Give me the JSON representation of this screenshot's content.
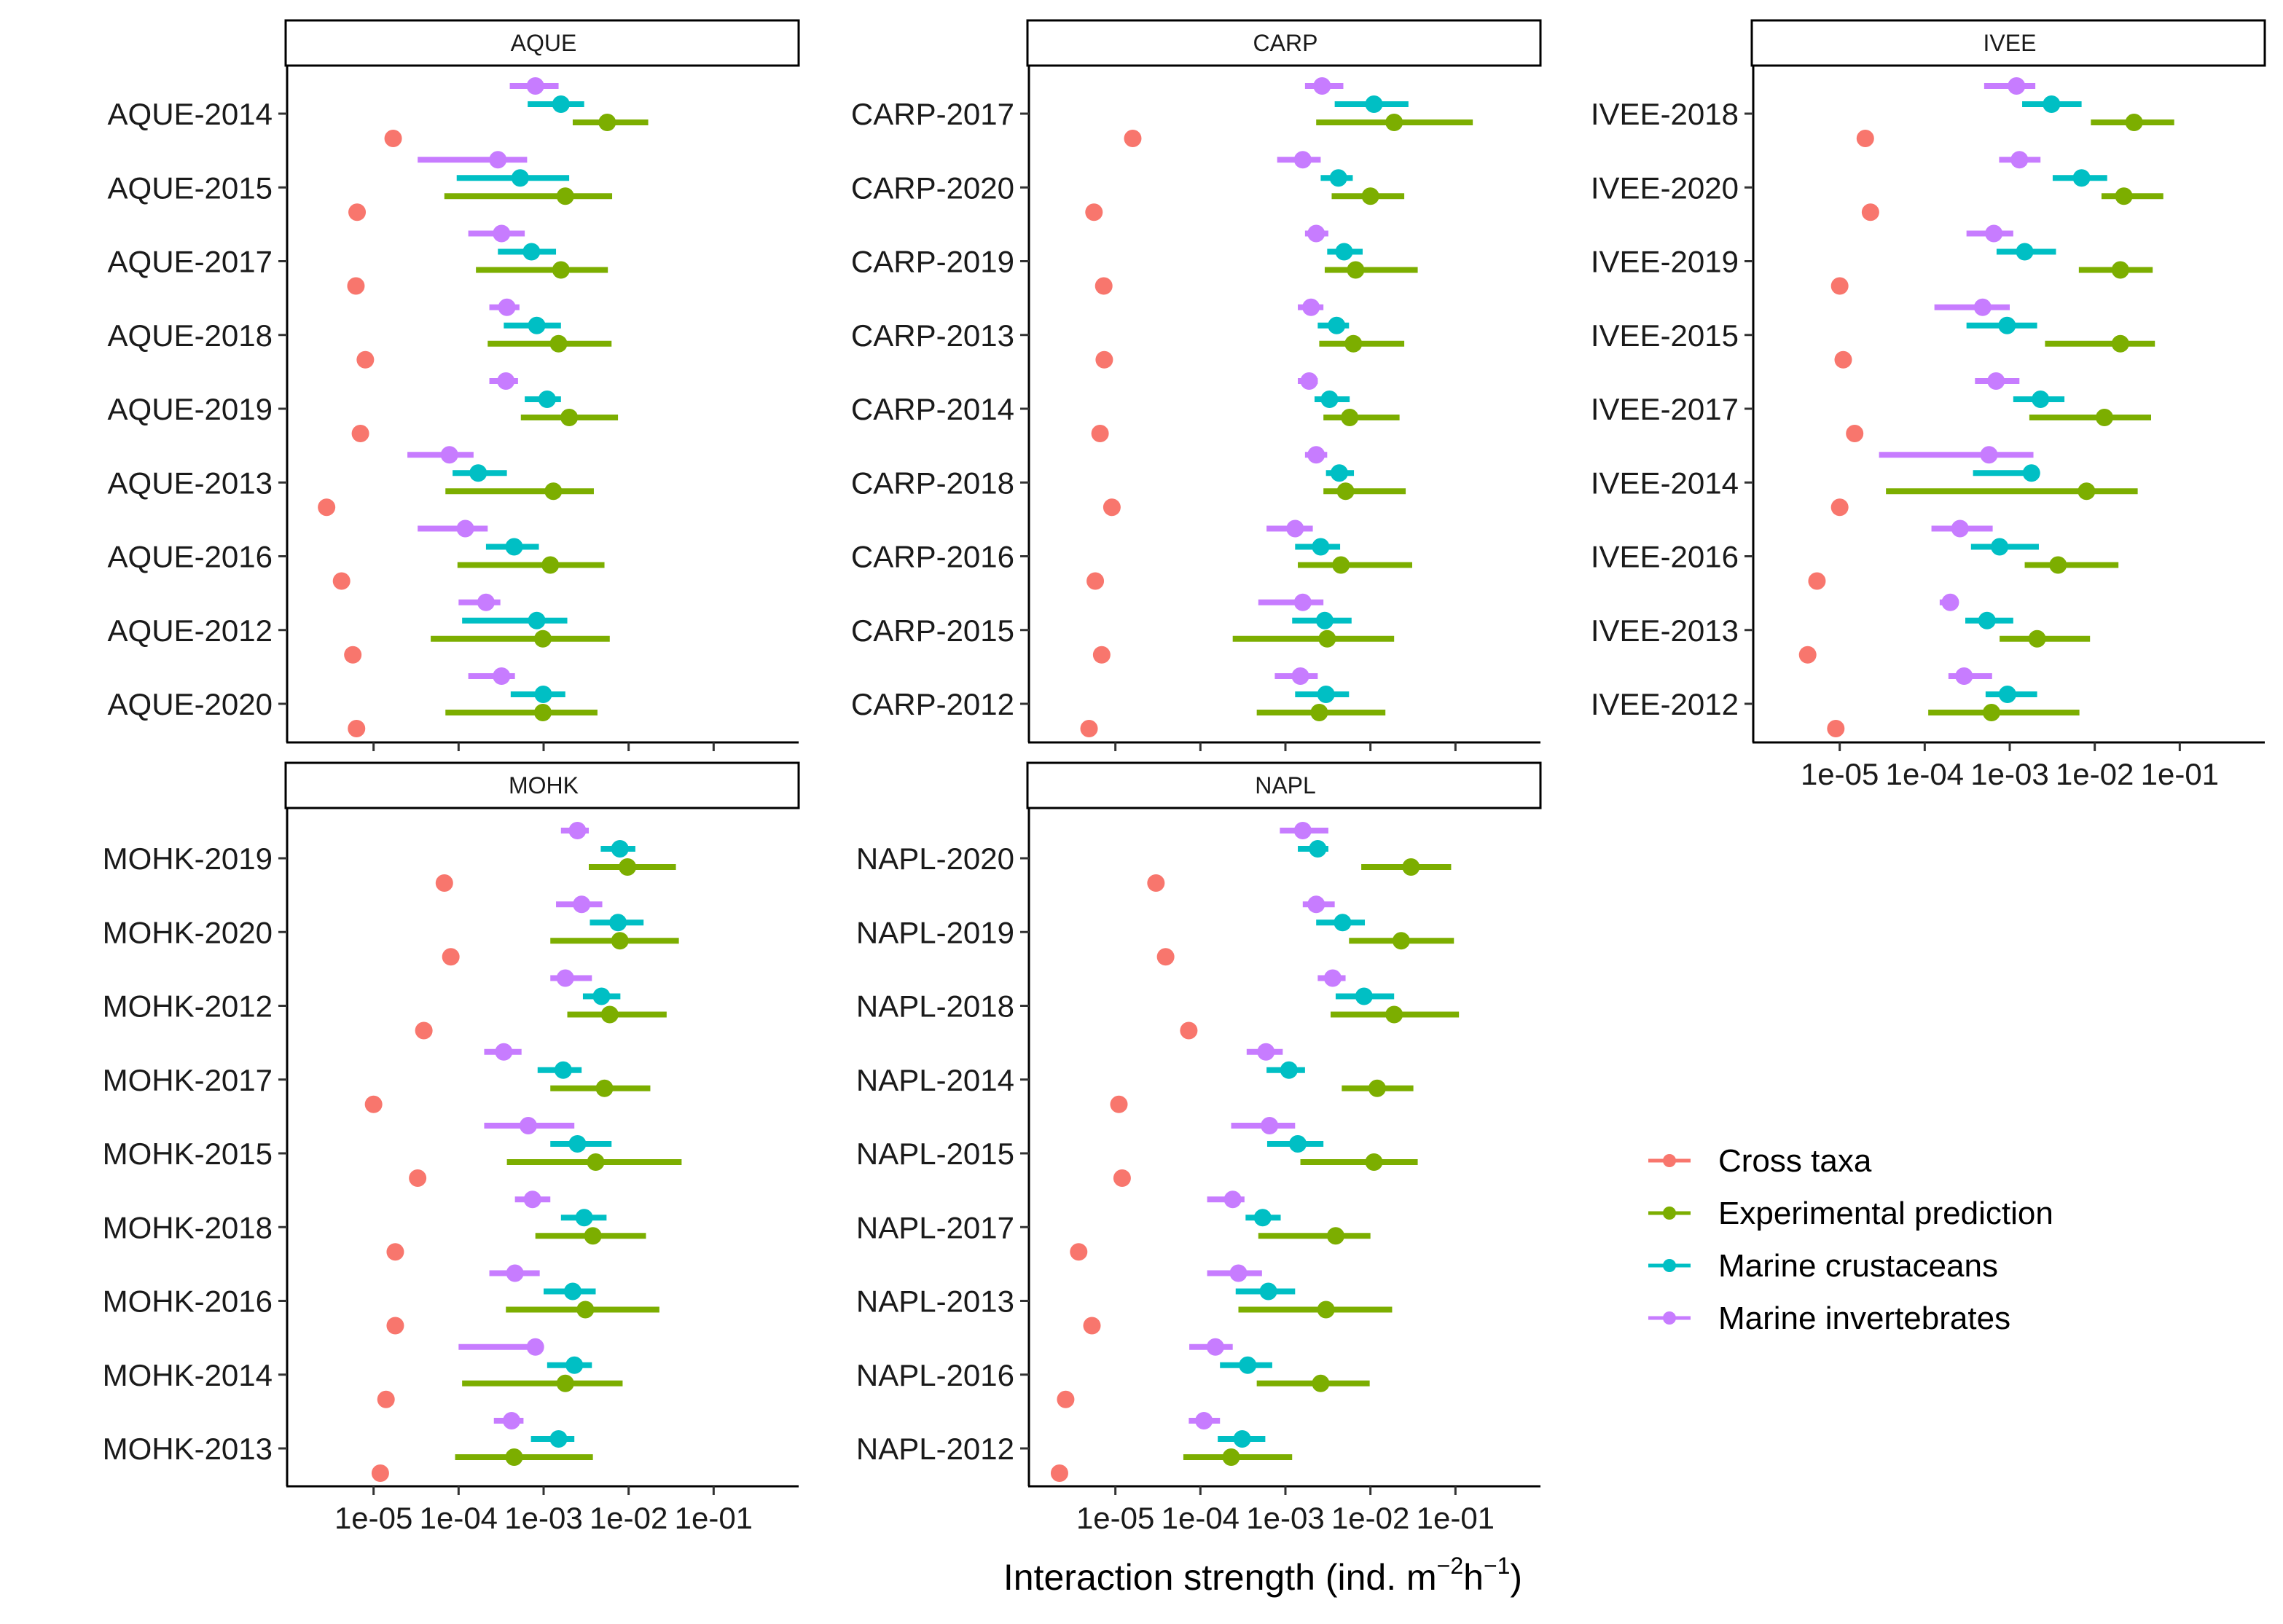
{
  "chart_data": {
    "type": "dot-interval",
    "xlabel_main": "Interaction strength (ind. m",
    "xlabel_sup1": "−2",
    "xlabel_mid": "h",
    "xlabel_sup2": "−1",
    "xlabel_close": ")",
    "x_scale": "log10",
    "xlim": [
      1e-06,
      1
    ],
    "x_ticks": [
      {
        "value": 1e-05,
        "label": "1e-05"
      },
      {
        "value": 0.0001,
        "label": "1e-04"
      },
      {
        "value": 0.001,
        "label": "1e-03"
      },
      {
        "value": 0.01,
        "label": "1e-02"
      },
      {
        "value": 0.1,
        "label": "1e-01"
      }
    ],
    "legend_position": "right",
    "series": [
      {
        "name": "Cross taxa",
        "color": "#F8766D"
      },
      {
        "name": "Experimental prediction",
        "color": "#7CAE00"
      },
      {
        "name": "Marine crustaceans",
        "color": "#00BFC4"
      },
      {
        "name": "Marine invertebrates",
        "color": "#C77CFF"
      }
    ],
    "panels": [
      {
        "strip": "AQUE",
        "rows": [
          {
            "label": "AQUE-2014",
            "cross": 1.7e-05,
            "exp": [
              0.0056,
              0.0022,
              0.017
            ],
            "crust": [
              0.0016,
              0.00065,
              0.003
            ],
            "inv": [
              0.0008,
              0.0004,
              0.0015
            ]
          },
          {
            "label": "AQUE-2015",
            "cross": 6.4e-06,
            "exp": [
              0.0018,
              6.8e-05,
              0.0064
            ],
            "crust": [
              0.00053,
              9.5e-05,
              0.002
            ],
            "inv": [
              0.00029,
              3.3e-05,
              0.00064
            ]
          },
          {
            "label": "AQUE-2017",
            "cross": 6.2e-06,
            "exp": [
              0.0016,
              0.00016,
              0.0057
            ],
            "crust": [
              0.00072,
              0.00029,
              0.0014
            ],
            "inv": [
              0.00032,
              0.00013,
              0.0006
            ]
          },
          {
            "label": "AQUE-2018",
            "cross": 8e-06,
            "exp": [
              0.0015,
              0.00022,
              0.0063
            ],
            "crust": [
              0.00083,
              0.00034,
              0.0016
            ],
            "inv": [
              0.00037,
              0.00023,
              0.00052
            ]
          },
          {
            "label": "AQUE-2019",
            "cross": 7e-06,
            "exp": [
              0.002,
              0.00054,
              0.0075
            ],
            "crust": [
              0.0011,
              0.0006,
              0.0016
            ],
            "inv": [
              0.00036,
              0.00023,
              0.0005
            ]
          },
          {
            "label": "AQUE-2013",
            "cross": 2.8e-06,
            "exp": [
              0.0013,
              7e-05,
              0.0039
            ],
            "crust": [
              0.00017,
              8.5e-05,
              0.00037
            ],
            "inv": [
              7.8e-05,
              2.5e-05,
              0.00015
            ]
          },
          {
            "label": "AQUE-2016",
            "cross": 4.2e-06,
            "exp": [
              0.0012,
              9.7e-05,
              0.0052
            ],
            "crust": [
              0.00045,
              0.00021,
              0.00088
            ],
            "inv": [
              0.00012,
              3.3e-05,
              0.00022
            ]
          },
          {
            "label": "AQUE-2012",
            "cross": 5.7e-06,
            "exp": [
              0.00098,
              4.7e-05,
              0.006
            ],
            "crust": [
              0.00083,
              0.00011,
              0.0019
            ],
            "inv": [
              0.00021,
              0.0001,
              0.00031
            ]
          },
          {
            "label": "AQUE-2020",
            "cross": 6.3e-06,
            "exp": [
              0.00098,
              7e-05,
              0.0043
            ],
            "crust": [
              0.00099,
              0.00041,
              0.0018
            ],
            "inv": [
              0.00032,
              0.00013,
              0.00046
            ]
          }
        ]
      },
      {
        "strip": "CARP",
        "rows": [
          {
            "label": "CARP-2017",
            "cross": 1.6e-05,
            "exp": [
              0.019,
              0.0023,
              0.16
            ],
            "crust": [
              0.011,
              0.0038,
              0.028
            ],
            "inv": [
              0.0027,
              0.0017,
              0.0048
            ]
          },
          {
            "label": "CARP-2020",
            "cross": 5.6e-06,
            "exp": [
              0.01,
              0.0035,
              0.025
            ],
            "crust": [
              0.0042,
              0.0026,
              0.0062
            ],
            "inv": [
              0.0016,
              0.0008,
              0.0026
            ]
          },
          {
            "label": "CARP-2019",
            "cross": 7.3e-06,
            "exp": [
              0.0067,
              0.0029,
              0.036
            ],
            "crust": [
              0.0049,
              0.0031,
              0.0081
            ],
            "inv": [
              0.0023,
              0.0017,
              0.0032
            ]
          },
          {
            "label": "CARP-2013",
            "cross": 7.4e-06,
            "exp": [
              0.0063,
              0.0025,
              0.025
            ],
            "crust": [
              0.004,
              0.0024,
              0.0056
            ],
            "inv": [
              0.002,
              0.0014,
              0.0028
            ]
          },
          {
            "label": "CARP-2014",
            "cross": 6.6e-06,
            "exp": [
              0.0057,
              0.0028,
              0.022
            ],
            "crust": [
              0.0033,
              0.0022,
              0.0057
            ],
            "inv": [
              0.0019,
              0.0014,
              0.0024
            ]
          },
          {
            "label": "CARP-2018",
            "cross": 9.1e-06,
            "exp": [
              0.0051,
              0.0028,
              0.026
            ],
            "crust": [
              0.0043,
              0.003,
              0.0064
            ],
            "inv": [
              0.0023,
              0.0017,
              0.0031
            ]
          },
          {
            "label": "CARP-2016",
            "cross": 5.8e-06,
            "exp": [
              0.0045,
              0.0014,
              0.031
            ],
            "crust": [
              0.0026,
              0.0013,
              0.0044
            ],
            "inv": [
              0.0013,
              0.0006,
              0.0021
            ]
          },
          {
            "label": "CARP-2015",
            "cross": 6.9e-06,
            "exp": [
              0.0031,
              0.00024,
              0.019
            ],
            "crust": [
              0.0029,
              0.0012,
              0.006
            ],
            "inv": [
              0.0016,
              0.00048,
              0.0028
            ]
          },
          {
            "label": "CARP-2012",
            "cross": 4.9e-06,
            "exp": [
              0.0025,
              0.00046,
              0.015
            ],
            "crust": [
              0.003,
              0.0013,
              0.0056
            ],
            "inv": [
              0.0015,
              0.00075,
              0.0024
            ]
          }
        ]
      },
      {
        "strip": "IVEE",
        "rows": [
          {
            "label": "IVEE-2018",
            "cross": 2e-05,
            "exp": [
              0.029,
              0.009,
              0.086
            ],
            "crust": [
              0.0031,
              0.0014,
              0.007
            ],
            "inv": [
              0.0012,
              0.0005,
              0.002
            ]
          },
          {
            "label": "IVEE-2020",
            "cross": 2.3e-05,
            "exp": [
              0.022,
              0.012,
              0.064
            ],
            "crust": [
              0.007,
              0.0032,
              0.014
            ],
            "inv": [
              0.0013,
              0.00075,
              0.0023
            ]
          },
          {
            "label": "IVEE-2019",
            "cross": 1e-05,
            "exp": [
              0.02,
              0.0065,
              0.048
            ],
            "crust": [
              0.0015,
              0.0007,
              0.0035
            ],
            "inv": [
              0.00065,
              0.00031,
              0.0011
            ]
          },
          {
            "label": "IVEE-2015",
            "cross": 1.1e-05,
            "exp": [
              0.02,
              0.0026,
              0.051
            ],
            "crust": [
              0.00093,
              0.00031,
              0.0021
            ],
            "inv": [
              0.00048,
              0.00013,
              0.001
            ]
          },
          {
            "label": "IVEE-2017",
            "cross": 1.5e-05,
            "exp": [
              0.013,
              0.0017,
              0.046
            ],
            "crust": [
              0.0023,
              0.0011,
              0.0044
            ],
            "inv": [
              0.00069,
              0.00039,
              0.0013
            ]
          },
          {
            "label": "IVEE-2014",
            "cross": 1e-05,
            "exp": [
              0.008,
              3.5e-05,
              0.032
            ],
            "crust": [
              0.0018,
              0.00037,
              0.0019
            ],
            "inv": [
              0.00057,
              2.9e-05,
              0.0019
            ]
          },
          {
            "label": "IVEE-2016",
            "cross": 5.4e-06,
            "exp": [
              0.0037,
              0.0015,
              0.019
            ],
            "crust": [
              0.00076,
              0.00035,
              0.0022
            ],
            "inv": [
              0.00026,
              0.00012,
              0.00063
            ]
          },
          {
            "label": "IVEE-2013",
            "cross": 4.2e-06,
            "exp": [
              0.0021,
              0.00076,
              0.0088
            ],
            "crust": [
              0.00054,
              0.0003,
              0.0011
            ],
            "inv": [
              0.0002,
              0.00015,
              0.00025
            ]
          },
          {
            "label": "IVEE-2012",
            "cross": 9e-06,
            "exp": [
              0.00061,
              0.00011,
              0.0066
            ],
            "crust": [
              0.00094,
              0.00052,
              0.0021
            ],
            "inv": [
              0.00029,
              0.00019,
              0.00062
            ]
          }
        ]
      },
      {
        "strip": "MOHK",
        "rows": [
          {
            "label": "MOHK-2019",
            "cross": 6.8e-05,
            "exp": [
              0.0097,
              0.0034,
              0.036
            ],
            "crust": [
              0.0079,
              0.0047,
              0.012
            ],
            "inv": [
              0.0025,
              0.0016,
              0.0034
            ]
          },
          {
            "label": "MOHK-2020",
            "cross": 8.1e-05,
            "exp": [
              0.0079,
              0.0012,
              0.039
            ],
            "crust": [
              0.0075,
              0.0035,
              0.015
            ],
            "inv": [
              0.0028,
              0.0014,
              0.0049
            ]
          },
          {
            "label": "MOHK-2012",
            "cross": 3.9e-05,
            "exp": [
              0.006,
              0.0019,
              0.028
            ],
            "crust": [
              0.0048,
              0.0029,
              0.008
            ],
            "inv": [
              0.0018,
              0.0012,
              0.0037
            ]
          },
          {
            "label": "MOHK-2017",
            "cross": 1e-05,
            "exp": [
              0.0052,
              0.0012,
              0.018
            ],
            "crust": [
              0.0017,
              0.00085,
              0.0028
            ],
            "inv": [
              0.00034,
              0.0002,
              0.00055
            ]
          },
          {
            "label": "MOHK-2015",
            "cross": 3.3e-05,
            "exp": [
              0.0041,
              0.00037,
              0.042
            ],
            "crust": [
              0.0025,
              0.0012,
              0.0063
            ],
            "inv": [
              0.00066,
              0.0002,
              0.0023
            ]
          },
          {
            "label": "MOHK-2018",
            "cross": 1.8e-05,
            "exp": [
              0.0038,
              0.0008,
              0.016
            ],
            "crust": [
              0.003,
              0.0016,
              0.0055
            ],
            "inv": [
              0.00074,
              0.00046,
              0.0012
            ]
          },
          {
            "label": "MOHK-2016",
            "cross": 1.8e-05,
            "exp": [
              0.0031,
              0.00036,
              0.023
            ],
            "crust": [
              0.0022,
              0.001,
              0.0041
            ],
            "inv": [
              0.00046,
              0.00023,
              0.0009
            ]
          },
          {
            "label": "MOHK-2014",
            "cross": 1.4e-05,
            "exp": [
              0.0018,
              0.00011,
              0.0085
            ],
            "crust": [
              0.0023,
              0.0011,
              0.0037
            ],
            "inv": [
              0.0008,
              0.0001,
              0.00084
            ]
          },
          {
            "label": "MOHK-2013",
            "cross": 1.2e-05,
            "exp": [
              0.00045,
              9.1e-05,
              0.0038
            ],
            "crust": [
              0.0015,
              0.00071,
              0.0023
            ],
            "inv": [
              0.00042,
              0.00026,
              0.00058
            ]
          }
        ]
      },
      {
        "strip": "NAPL",
        "rows": [
          {
            "label": "NAPL-2020",
            "cross": 3e-05,
            "exp": [
              0.03,
              0.0078,
              0.089
            ],
            "crust": [
              0.0024,
              0.0014,
              0.0032
            ],
            "inv": [
              0.0016,
              0.00086,
              0.0032
            ]
          },
          {
            "label": "NAPL-2019",
            "cross": 3.9e-05,
            "exp": [
              0.023,
              0.0056,
              0.096
            ],
            "crust": [
              0.0047,
              0.0023,
              0.0086
            ],
            "inv": [
              0.0023,
              0.0016,
              0.0038
            ]
          },
          {
            "label": "NAPL-2018",
            "cross": 7.3e-05,
            "exp": [
              0.019,
              0.0034,
              0.11
            ],
            "crust": [
              0.0084,
              0.0039,
              0.019
            ],
            "inv": [
              0.0036,
              0.0024,
              0.0051
            ]
          },
          {
            "label": "NAPL-2014",
            "cross": 1.1e-05,
            "exp": [
              0.012,
              0.0046,
              0.032
            ],
            "crust": [
              0.0011,
              0.0006,
              0.0017
            ],
            "inv": [
              0.00059,
              0.00035,
              0.00093
            ]
          },
          {
            "label": "NAPL-2015",
            "cross": 1.2e-05,
            "exp": [
              0.011,
              0.0015,
              0.036
            ],
            "crust": [
              0.0014,
              0.00061,
              0.0028
            ],
            "inv": [
              0.00065,
              0.00023,
              0.0013
            ]
          },
          {
            "label": "NAPL-2017",
            "cross": 3.7e-06,
            "exp": [
              0.0039,
              0.00048,
              0.01
            ],
            "crust": [
              0.00054,
              0.00034,
              0.00088
            ],
            "inv": [
              0.00024,
              0.00012,
              0.00033
            ]
          },
          {
            "label": "NAPL-2013",
            "cross": 5.3e-06,
            "exp": [
              0.003,
              0.00028,
              0.018
            ],
            "crust": [
              0.00063,
              0.00026,
              0.0013
            ],
            "inv": [
              0.00028,
              0.00012,
              0.00053
            ]
          },
          {
            "label": "NAPL-2016",
            "cross": 2.6e-06,
            "exp": [
              0.0026,
              0.00046,
              0.0098
            ],
            "crust": [
              0.00036,
              0.00017,
              0.0007
            ],
            "inv": [
              0.00015,
              7.4e-05,
              0.00024
            ]
          },
          {
            "label": "NAPL-2012",
            "cross": 2.2e-06,
            "exp": [
              0.00023,
              6.3e-05,
              0.0012
            ],
            "crust": [
              0.00031,
              0.00016,
              0.00058
            ],
            "inv": [
              0.00011,
              7.3e-05,
              0.00017
            ]
          }
        ]
      }
    ]
  }
}
